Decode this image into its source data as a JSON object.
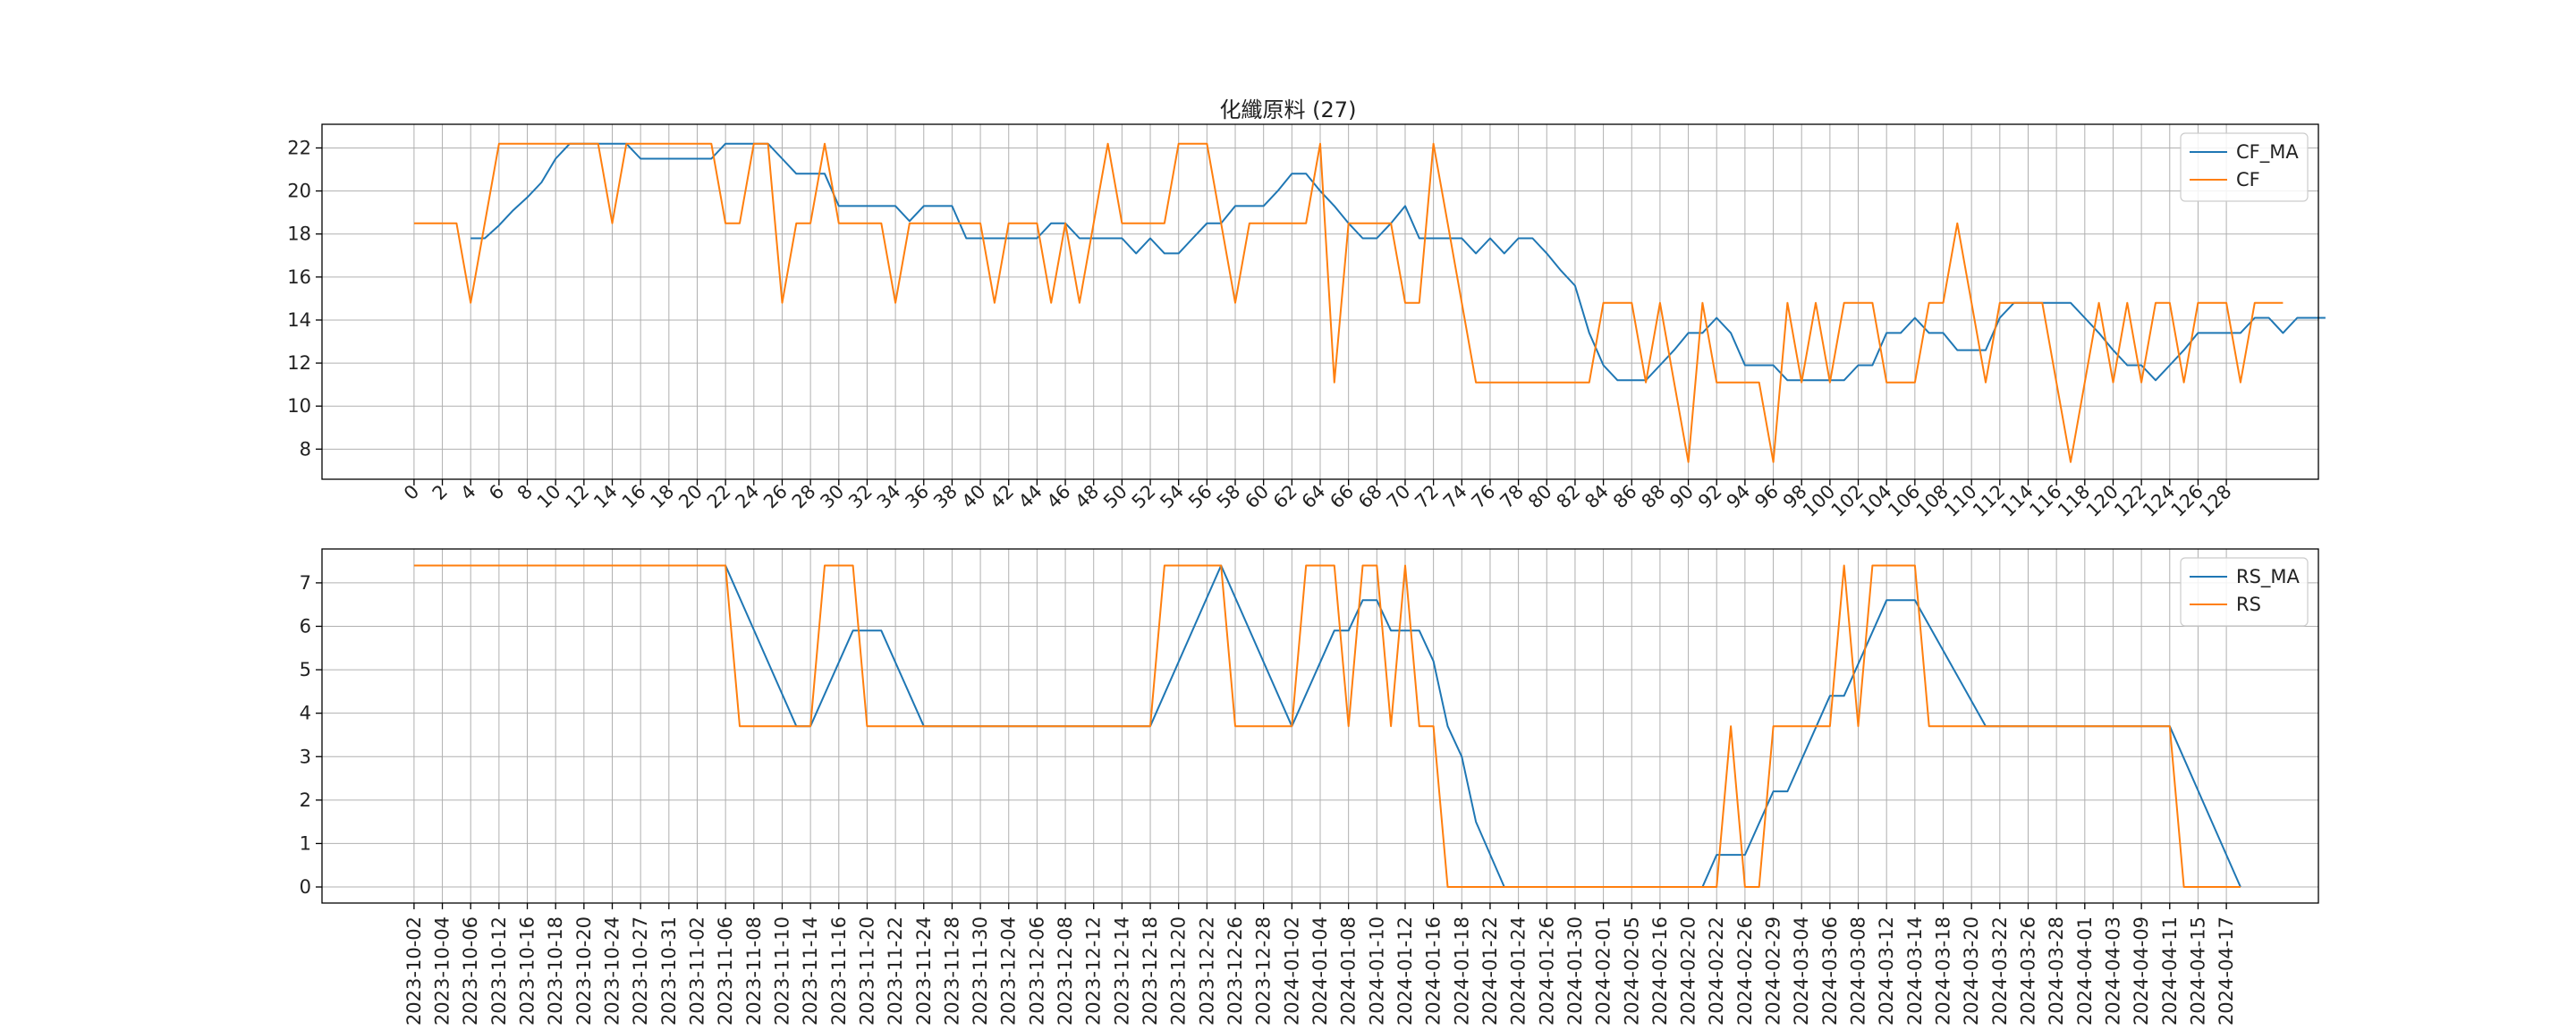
{
  "chart_data": [
    {
      "type": "line",
      "title": "化纖原料 (27)",
      "xlabel": "",
      "ylabel": "",
      "x_tick_labels": [
        "0",
        "2",
        "4",
        "6",
        "8",
        "10",
        "12",
        "14",
        "16",
        "18",
        "20",
        "22",
        "24",
        "26",
        "28",
        "30",
        "32",
        "34",
        "36",
        "38",
        "40",
        "42",
        "44",
        "46",
        "48",
        "50",
        "52",
        "54",
        "56",
        "58",
        "60",
        "62",
        "64",
        "66",
        "68",
        "70",
        "72",
        "74",
        "76",
        "78",
        "80",
        "82",
        "84",
        "86",
        "88",
        "90",
        "92",
        "94",
        "96",
        "98",
        "100",
        "102",
        "104",
        "106",
        "108",
        "110",
        "112",
        "114",
        "116",
        "118",
        "120",
        "122",
        "124",
        "126",
        "128"
      ],
      "y_ticks": [
        8,
        10,
        12,
        14,
        16,
        18,
        20,
        22
      ],
      "ylim": [
        6.6,
        23.1
      ],
      "xlim": [
        -6.5,
        134.5
      ],
      "grid": true,
      "legend_position": "upper right",
      "series": [
        {
          "name": "CF_MA",
          "color": "#1f77b4",
          "start": 4,
          "values": [
            17.8,
            17.8,
            18.4,
            19.1,
            19.7,
            20.4,
            21.5,
            22.2,
            22.2,
            22.2,
            22.2,
            22.2,
            21.5,
            21.5,
            21.5,
            21.5,
            21.5,
            21.5,
            22.2,
            22.2,
            22.2,
            22.2,
            21.5,
            20.8,
            20.8,
            20.8,
            19.3,
            19.3,
            19.3,
            19.3,
            19.3,
            18.6,
            19.3,
            19.3,
            19.3,
            17.8,
            17.8,
            17.8,
            17.8,
            17.8,
            17.8,
            18.5,
            18.5,
            17.8,
            17.8,
            17.8,
            17.8,
            17.1,
            17.8,
            17.1,
            17.1,
            17.8,
            18.5,
            18.5,
            19.3,
            19.3,
            19.3,
            20.0,
            20.8,
            20.8,
            20.0,
            19.3,
            18.5,
            17.8,
            17.8,
            18.5,
            19.3,
            17.8,
            17.8,
            17.8,
            17.8,
            17.1,
            17.8,
            17.1,
            17.8,
            17.8,
            17.1,
            16.3,
            15.6,
            13.4,
            11.9,
            11.2,
            11.2,
            11.2,
            11.9,
            12.6,
            13.4,
            13.4,
            14.1,
            13.4,
            11.9,
            11.9,
            11.9,
            11.2,
            11.2,
            11.2,
            11.2,
            11.2,
            11.9,
            11.9,
            13.4,
            13.4,
            14.1,
            13.4,
            13.4,
            12.6,
            12.6,
            12.6,
            14.1,
            14.8,
            14.8,
            14.8,
            14.8,
            14.8,
            14.1,
            13.4,
            12.6,
            11.9,
            11.9,
            11.2,
            11.9,
            12.6,
            13.4,
            13.4,
            13.4,
            13.4,
            14.1,
            14.1,
            13.4,
            14.1,
            14.1,
            14.1
          ]
        },
        {
          "name": "CF",
          "color": "#ff7f0e",
          "start": 0,
          "values": [
            18.5,
            18.5,
            18.5,
            18.5,
            14.8,
            18.5,
            22.2,
            22.2,
            22.2,
            22.2,
            22.2,
            22.2,
            22.2,
            22.2,
            18.5,
            22.2,
            22.2,
            22.2,
            22.2,
            22.2,
            22.2,
            22.2,
            18.5,
            18.5,
            22.2,
            22.2,
            14.8,
            18.5,
            18.5,
            22.2,
            18.5,
            18.5,
            18.5,
            18.5,
            14.8,
            18.5,
            18.5,
            18.5,
            18.5,
            18.5,
            18.5,
            14.8,
            18.5,
            18.5,
            18.5,
            14.8,
            18.5,
            14.8,
            18.5,
            22.2,
            18.5,
            18.5,
            18.5,
            18.5,
            22.2,
            22.2,
            22.2,
            18.5,
            14.8,
            18.5,
            18.5,
            18.5,
            18.5,
            18.5,
            22.2,
            11.1,
            18.5,
            18.5,
            18.5,
            18.5,
            14.8,
            14.8,
            22.2,
            18.5,
            14.8,
            11.1,
            11.1,
            11.1,
            11.1,
            11.1,
            11.1,
            11.1,
            11.1,
            11.1,
            14.8,
            14.8,
            14.8,
            11.1,
            14.8,
            11.1,
            7.4,
            14.8,
            11.1,
            11.1,
            11.1,
            11.1,
            7.4,
            14.8,
            11.1,
            14.8,
            11.1,
            14.8,
            14.8,
            14.8,
            11.1,
            11.1,
            11.1,
            14.8,
            14.8,
            18.5,
            14.8,
            11.1,
            14.8,
            14.8,
            14.8,
            14.8,
            11.1,
            7.4,
            11.1,
            14.8,
            11.1,
            14.8,
            11.1,
            14.8,
            14.8,
            11.1,
            14.8,
            14.8,
            14.8,
            11.1,
            14.8,
            14.8,
            14.8
          ]
        }
      ]
    },
    {
      "type": "line",
      "title": "",
      "xlabel": "",
      "ylabel": "",
      "x_tick_labels": [
        "2023-10-02",
        "2023-10-04",
        "2023-10-06",
        "2023-10-12",
        "2023-10-16",
        "2023-10-18",
        "2023-10-20",
        "2023-10-24",
        "2023-10-27",
        "2023-10-31",
        "2023-11-02",
        "2023-11-06",
        "2023-11-08",
        "2023-11-10",
        "2023-11-14",
        "2023-11-16",
        "2023-11-20",
        "2023-11-22",
        "2023-11-24",
        "2023-11-28",
        "2023-11-30",
        "2023-12-04",
        "2023-12-06",
        "2023-12-08",
        "2023-12-12",
        "2023-12-14",
        "2023-12-18",
        "2023-12-20",
        "2023-12-22",
        "2023-12-26",
        "2023-12-28",
        "2024-01-02",
        "2024-01-04",
        "2024-01-08",
        "2024-01-10",
        "2024-01-12",
        "2024-01-16",
        "2024-01-18",
        "2024-01-22",
        "2024-01-24",
        "2024-01-26",
        "2024-01-30",
        "2024-02-01",
        "2024-02-05",
        "2024-02-16",
        "2024-02-20",
        "2024-02-22",
        "2024-02-26",
        "2024-02-29",
        "2024-03-04",
        "2024-03-06",
        "2024-03-08",
        "2024-03-12",
        "2024-03-14",
        "2024-03-18",
        "2024-03-20",
        "2024-03-22",
        "2024-03-26",
        "2024-03-28",
        "2024-04-01",
        "2024-04-03",
        "2024-04-09",
        "2024-04-11",
        "2024-04-15",
        "2024-04-17"
      ],
      "y_ticks": [
        0,
        1,
        2,
        3,
        4,
        5,
        6,
        7
      ],
      "ylim": [
        -0.37,
        7.78
      ],
      "xlim": [
        -6.5,
        134.5
      ],
      "grid": true,
      "legend_position": "upper right",
      "series": [
        {
          "name": "RS_MA",
          "color": "#1f77b4",
          "points": [
            [
              0,
              7.4
            ],
            [
              22,
              7.4
            ],
            [
              27,
              3.7
            ],
            [
              28,
              3.7
            ],
            [
              31,
              5.9
            ],
            [
              33,
              5.9
            ],
            [
              36,
              3.7
            ],
            [
              52,
              3.7
            ],
            [
              57,
              7.4
            ],
            [
              62,
              3.7
            ],
            [
              65,
              5.9
            ],
            [
              66,
              5.9
            ],
            [
              67,
              6.6
            ],
            [
              68,
              6.6
            ],
            [
              69,
              5.9
            ],
            [
              71,
              5.9
            ],
            [
              72,
              5.2
            ],
            [
              73,
              3.7
            ],
            [
              74,
              3.0
            ],
            [
              75,
              1.5
            ],
            [
              77,
              0
            ],
            [
              91,
              0
            ],
            [
              92,
              0.74
            ],
            [
              94,
              0.74
            ],
            [
              96,
              2.2
            ],
            [
              97,
              2.2
            ],
            [
              100,
              4.4
            ],
            [
              101,
              4.4
            ],
            [
              104,
              6.6
            ],
            [
              106,
              6.6
            ],
            [
              111,
              3.7
            ],
            [
              124,
              3.7
            ],
            [
              129,
              0
            ]
          ]
        },
        {
          "name": "RS",
          "color": "#ff7f0e",
          "points": [
            [
              0,
              7.4
            ],
            [
              22,
              7.4
            ],
            [
              23,
              3.7
            ],
            [
              28,
              3.7
            ],
            [
              29,
              7.4
            ],
            [
              31,
              7.4
            ],
            [
              32,
              3.7
            ],
            [
              52,
              3.7
            ],
            [
              53,
              7.4
            ],
            [
              57,
              7.4
            ],
            [
              58,
              3.7
            ],
            [
              62,
              3.7
            ],
            [
              63,
              7.4
            ],
            [
              65,
              7.4
            ],
            [
              66,
              3.7
            ],
            [
              67,
              7.4
            ],
            [
              68,
              7.4
            ],
            [
              69,
              3.7
            ],
            [
              70,
              7.4
            ],
            [
              71,
              3.7
            ],
            [
              72,
              3.7
            ],
            [
              73,
              0
            ],
            [
              92,
              0
            ],
            [
              93,
              3.7
            ],
            [
              94,
              0
            ],
            [
              95,
              0
            ],
            [
              96,
              3.7
            ],
            [
              100,
              3.7
            ],
            [
              101,
              7.4
            ],
            [
              102,
              3.7
            ],
            [
              103,
              7.4
            ],
            [
              106,
              7.4
            ],
            [
              107,
              3.7
            ],
            [
              124,
              3.7
            ],
            [
              125,
              0
            ],
            [
              129,
              0
            ]
          ]
        }
      ]
    }
  ]
}
